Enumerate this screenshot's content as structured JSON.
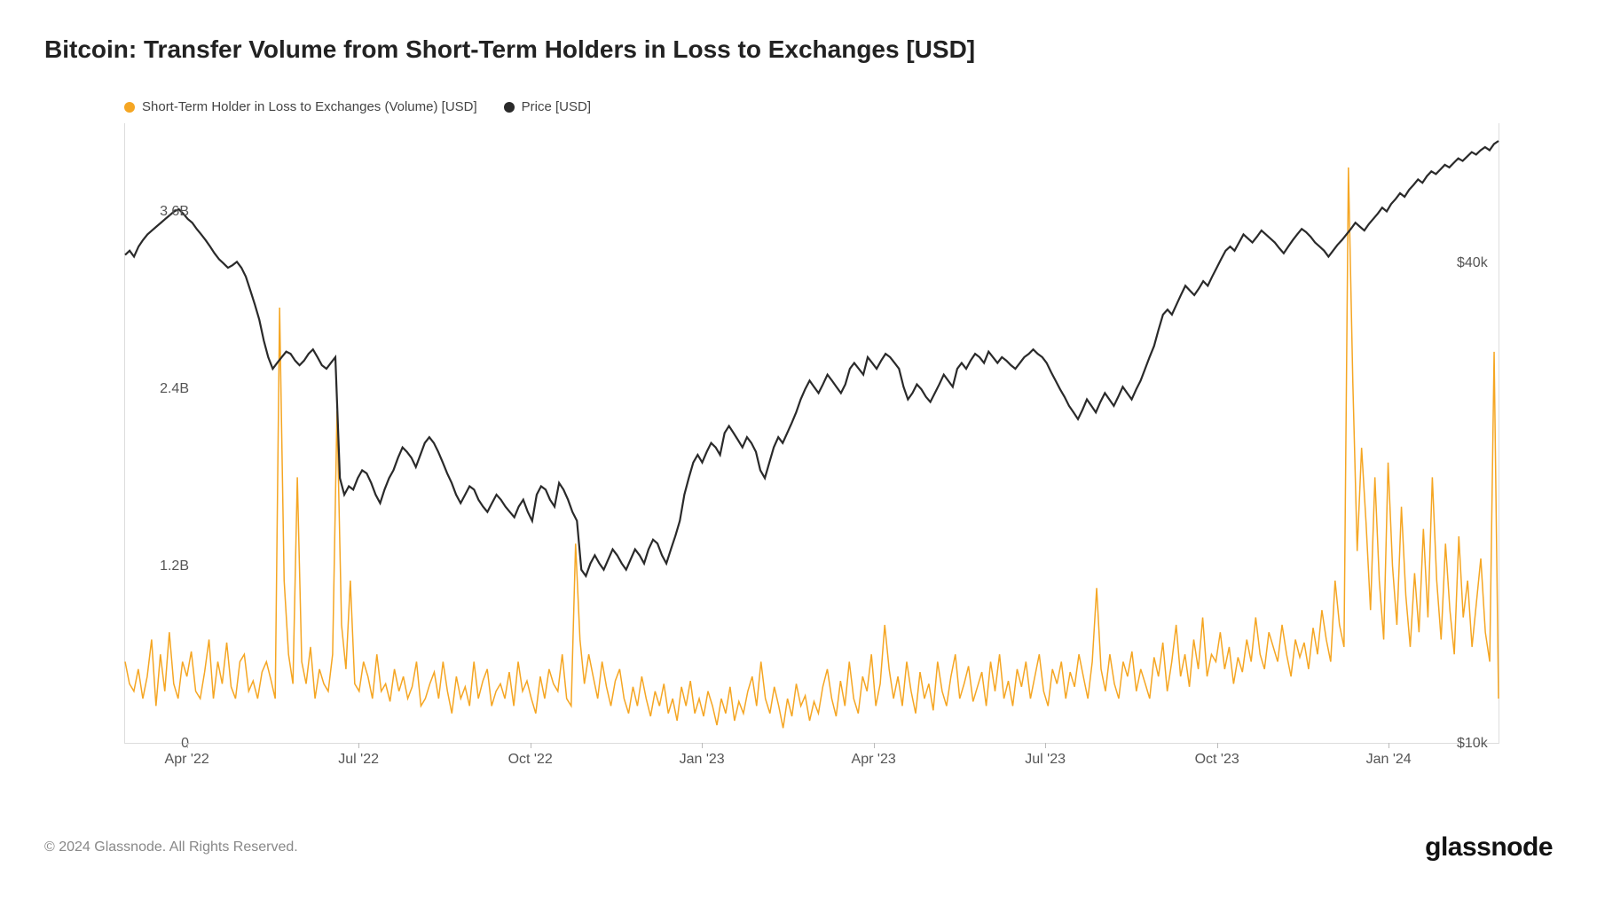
{
  "title": "Bitcoin: Transfer Volume from Short-Term Holders in Loss to Exchanges [USD]",
  "legend": {
    "series1": {
      "label": "Short-Term Holder in Loss to Exchanges (Volume) [USD]",
      "color": "#f5a623"
    },
    "series2": {
      "label": "Price [USD]",
      "color": "#2a2a2a"
    }
  },
  "copyright": "© 2024 Glassnode. All Rights Reserved.",
  "brand": "glassnode",
  "chart": {
    "type": "dual-axis-line",
    "background_color": "#ffffff",
    "grid_color": "#dddddd",
    "line_width_volume": 1.5,
    "line_width_price": 2.2,
    "x_ticks": [
      {
        "pos": 0.045,
        "label": "Apr '22"
      },
      {
        "pos": 0.17,
        "label": "Jul '22"
      },
      {
        "pos": 0.295,
        "label": "Oct '22"
      },
      {
        "pos": 0.42,
        "label": "Jan '23"
      },
      {
        "pos": 0.545,
        "label": "Apr '23"
      },
      {
        "pos": 0.67,
        "label": "Jul '23"
      },
      {
        "pos": 0.795,
        "label": "Oct '23"
      },
      {
        "pos": 0.92,
        "label": "Jan '24"
      }
    ],
    "left_axis": {
      "min": 0,
      "max": 4.2,
      "unit": "B",
      "ticks": [
        {
          "value": 0,
          "label": "0"
        },
        {
          "value": 1.2,
          "label": "1.2B"
        },
        {
          "value": 2.4,
          "label": "2.4B"
        },
        {
          "value": 3.6,
          "label": "3.6B"
        }
      ]
    },
    "right_axis": {
      "type": "log",
      "min": 10000,
      "max": 60000,
      "ticks": [
        {
          "value": 10000,
          "label": "$10k"
        },
        {
          "value": 40000,
          "label": "$40k"
        }
      ]
    },
    "volume_series": {
      "color": "#f5a623",
      "data": [
        0.55,
        0.4,
        0.35,
        0.5,
        0.3,
        0.45,
        0.7,
        0.25,
        0.6,
        0.35,
        0.75,
        0.4,
        0.3,
        0.55,
        0.45,
        0.62,
        0.35,
        0.3,
        0.48,
        0.7,
        0.3,
        0.55,
        0.4,
        0.68,
        0.38,
        0.3,
        0.55,
        0.6,
        0.35,
        0.42,
        0.3,
        0.48,
        0.55,
        0.43,
        0.3,
        2.95,
        1.1,
        0.6,
        0.4,
        1.8,
        0.55,
        0.4,
        0.65,
        0.3,
        0.5,
        0.4,
        0.35,
        0.6,
        2.25,
        0.8,
        0.5,
        1.1,
        0.4,
        0.35,
        0.55,
        0.45,
        0.3,
        0.6,
        0.35,
        0.4,
        0.28,
        0.5,
        0.35,
        0.45,
        0.3,
        0.38,
        0.55,
        0.25,
        0.3,
        0.4,
        0.48,
        0.3,
        0.55,
        0.35,
        0.2,
        0.45,
        0.3,
        0.38,
        0.25,
        0.55,
        0.3,
        0.42,
        0.5,
        0.25,
        0.35,
        0.4,
        0.3,
        0.48,
        0.25,
        0.55,
        0.35,
        0.42,
        0.3,
        0.2,
        0.45,
        0.3,
        0.5,
        0.4,
        0.35,
        0.6,
        0.3,
        0.25,
        1.35,
        0.7,
        0.4,
        0.6,
        0.45,
        0.3,
        0.55,
        0.38,
        0.25,
        0.42,
        0.5,
        0.3,
        0.2,
        0.38,
        0.25,
        0.45,
        0.3,
        0.18,
        0.35,
        0.25,
        0.4,
        0.2,
        0.3,
        0.15,
        0.38,
        0.25,
        0.42,
        0.2,
        0.3,
        0.18,
        0.35,
        0.25,
        0.12,
        0.3,
        0.2,
        0.38,
        0.15,
        0.28,
        0.2,
        0.35,
        0.45,
        0.25,
        0.55,
        0.3,
        0.2,
        0.38,
        0.25,
        0.1,
        0.3,
        0.18,
        0.4,
        0.25,
        0.32,
        0.15,
        0.28,
        0.2,
        0.38,
        0.5,
        0.3,
        0.18,
        0.42,
        0.25,
        0.55,
        0.3,
        0.2,
        0.45,
        0.35,
        0.6,
        0.25,
        0.4,
        0.8,
        0.5,
        0.3,
        0.45,
        0.25,
        0.55,
        0.35,
        0.2,
        0.48,
        0.3,
        0.4,
        0.22,
        0.55,
        0.35,
        0.25,
        0.45,
        0.6,
        0.3,
        0.4,
        0.52,
        0.28,
        0.38,
        0.48,
        0.25,
        0.55,
        0.35,
        0.6,
        0.3,
        0.42,
        0.25,
        0.5,
        0.38,
        0.55,
        0.3,
        0.45,
        0.6,
        0.35,
        0.25,
        0.5,
        0.4,
        0.55,
        0.3,
        0.48,
        0.38,
        0.6,
        0.45,
        0.3,
        0.55,
        1.05,
        0.5,
        0.35,
        0.6,
        0.4,
        0.3,
        0.55,
        0.45,
        0.62,
        0.35,
        0.5,
        0.4,
        0.3,
        0.58,
        0.45,
        0.68,
        0.35,
        0.55,
        0.8,
        0.45,
        0.6,
        0.38,
        0.7,
        0.5,
        0.85,
        0.45,
        0.6,
        0.55,
        0.75,
        0.5,
        0.65,
        0.4,
        0.58,
        0.48,
        0.7,
        0.55,
        0.85,
        0.6,
        0.5,
        0.75,
        0.65,
        0.55,
        0.8,
        0.6,
        0.45,
        0.7,
        0.58,
        0.68,
        0.5,
        0.78,
        0.6,
        0.9,
        0.7,
        0.55,
        1.1,
        0.8,
        0.65,
        3.9,
        2.45,
        1.3,
        2.0,
        1.5,
        0.9,
        1.8,
        1.1,
        0.7,
        1.9,
        1.2,
        0.8,
        1.6,
        1.0,
        0.65,
        1.15,
        0.75,
        1.45,
        0.85,
        1.8,
        1.1,
        0.7,
        1.35,
        0.9,
        0.6,
        1.4,
        0.85,
        1.1,
        0.65,
        0.95,
        1.25,
        0.75,
        0.55,
        2.65,
        0.3
      ]
    },
    "price_series": {
      "color": "#2a2a2a",
      "data": [
        41000,
        41500,
        40800,
        42000,
        42800,
        43500,
        44000,
        44500,
        45000,
        45500,
        46000,
        46500,
        46800,
        46200,
        45500,
        45000,
        44200,
        43500,
        42800,
        42000,
        41200,
        40500,
        40000,
        39500,
        39800,
        40200,
        39500,
        38500,
        37000,
        35500,
        34000,
        32000,
        30500,
        29500,
        30000,
        30500,
        31000,
        30800,
        30200,
        29800,
        30200,
        30800,
        31200,
        30500,
        29800,
        29500,
        30000,
        30500,
        21500,
        20500,
        21000,
        20800,
        21500,
        22000,
        21800,
        21200,
        20500,
        20000,
        20800,
        21500,
        22000,
        22800,
        23500,
        23200,
        22800,
        22200,
        23000,
        23800,
        24200,
        23800,
        23200,
        22500,
        21800,
        21200,
        20500,
        20000,
        20500,
        21000,
        20800,
        20200,
        19800,
        19500,
        20000,
        20500,
        20200,
        19800,
        19500,
        19200,
        19800,
        20200,
        19500,
        19000,
        20500,
        21000,
        20800,
        20200,
        19800,
        21200,
        20800,
        20200,
        19500,
        19000,
        16500,
        16200,
        16800,
        17200,
        16800,
        16500,
        17000,
        17500,
        17200,
        16800,
        16500,
        17000,
        17500,
        17200,
        16800,
        17500,
        18000,
        17800,
        17200,
        16800,
        17500,
        18200,
        19000,
        20500,
        21500,
        22500,
        23000,
        22500,
        23200,
        23800,
        23500,
        23000,
        24500,
        25000,
        24500,
        24000,
        23500,
        24200,
        23800,
        23200,
        22000,
        21500,
        22500,
        23500,
        24200,
        23800,
        24500,
        25200,
        26000,
        27000,
        27800,
        28500,
        28000,
        27500,
        28200,
        29000,
        28500,
        28000,
        27500,
        28200,
        29500,
        30000,
        29500,
        29000,
        30500,
        30000,
        29500,
        30200,
        30800,
        30500,
        30000,
        29500,
        28000,
        27000,
        27500,
        28200,
        27800,
        27200,
        26800,
        27500,
        28200,
        29000,
        28500,
        28000,
        29500,
        30000,
        29500,
        30200,
        30800,
        30500,
        30000,
        31000,
        30500,
        30000,
        30500,
        30200,
        29800,
        29500,
        30000,
        30500,
        30800,
        31200,
        30800,
        30500,
        30000,
        29200,
        28500,
        27800,
        27200,
        26500,
        26000,
        25500,
        26200,
        27000,
        26500,
        26000,
        26800,
        27500,
        27000,
        26500,
        27200,
        28000,
        27500,
        27000,
        27800,
        28500,
        29500,
        30500,
        31500,
        33000,
        34500,
        35000,
        34500,
        35500,
        36500,
        37500,
        37000,
        36500,
        37200,
        38000,
        37500,
        38500,
        39500,
        40500,
        41500,
        42000,
        41500,
        42500,
        43500,
        43000,
        42500,
        43200,
        44000,
        43500,
        43000,
        42500,
        41800,
        41200,
        42000,
        42800,
        43500,
        44200,
        43800,
        43200,
        42500,
        42000,
        41500,
        40800,
        41500,
        42200,
        42800,
        43500,
        44200,
        45000,
        44500,
        44000,
        44800,
        45500,
        46200,
        47000,
        46500,
        47500,
        48200,
        49000,
        48500,
        49500,
        50200,
        51000,
        50500,
        51500,
        52200,
        51800,
        52500,
        53200,
        52800,
        53500,
        54200,
        53800,
        54500,
        55200,
        54800,
        55500,
        56000,
        55500,
        56500,
        57000
      ]
    }
  }
}
